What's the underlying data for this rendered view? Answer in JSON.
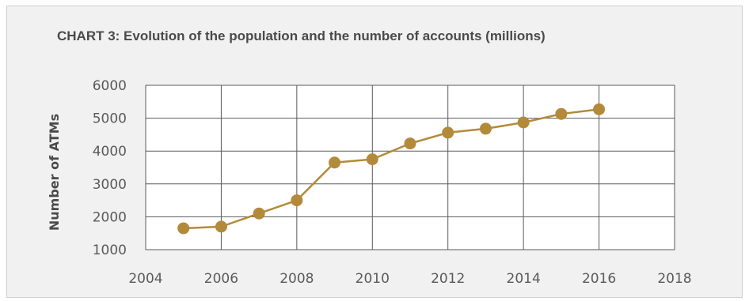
{
  "chart_data": {
    "type": "scatter",
    "title": "CHART 3: Evolution of the population and the number of accounts (millions)",
    "xlabel": "",
    "ylabel": "Number of ATMs",
    "xlim": [
      2004,
      2018
    ],
    "ylim": [
      1000,
      6000
    ],
    "x_ticks": [
      2004,
      2006,
      2008,
      2010,
      2012,
      2014,
      2016,
      2018
    ],
    "y_ticks": [
      1000,
      2000,
      3000,
      4000,
      5000,
      6000
    ],
    "grid": true,
    "series": [
      {
        "x": [
          2005,
          2006,
          2007,
          2008,
          2009,
          2010,
          2011,
          2012,
          2013,
          2014,
          2015,
          2016
        ],
        "y": [
          1650,
          1700,
          2100,
          2500,
          3650,
          3750,
          4230,
          4560,
          4680,
          4870,
          5130,
          5270
        ],
        "color": "#b38a3a",
        "mode": "lines+markers"
      }
    ]
  },
  "colors": {
    "panel_background": "#f1f1f1",
    "plot_background": "#ffffff",
    "grid": "#5a5a5a",
    "series": "#b38a3a"
  }
}
